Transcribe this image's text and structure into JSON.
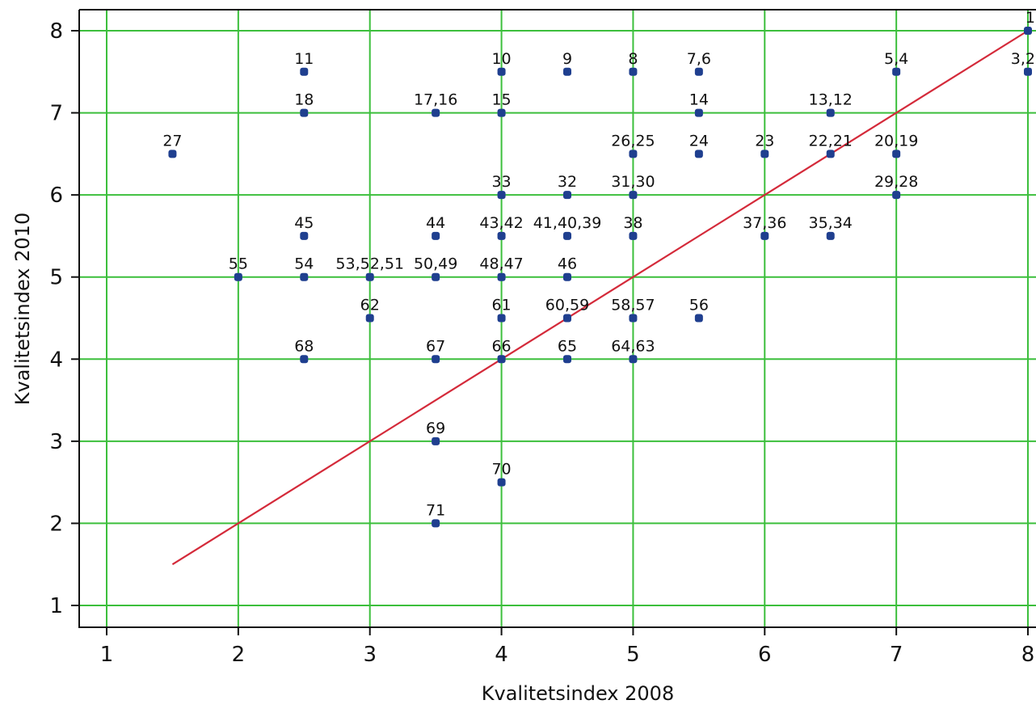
{
  "chart_data": {
    "type": "scatter",
    "xlabel": "Kvalitetsindex 2008",
    "ylabel": "Kvalitetsindex 2010",
    "xlim": [
      0.8,
      8.05
    ],
    "ylim": [
      0.7,
      8.25
    ],
    "xticks": [
      1,
      2,
      3,
      4,
      5,
      6,
      7,
      8
    ],
    "yticks": [
      1,
      2,
      3,
      4,
      5,
      6,
      7,
      8
    ],
    "xtick_labels": [
      "1",
      "2",
      "3",
      "4",
      "5",
      "6",
      "7",
      "8"
    ],
    "ytick_labels": [
      "1",
      "2",
      "3",
      "4",
      "5",
      "6",
      "7",
      "8"
    ],
    "grid": true,
    "reference_line": {
      "x": [
        1.5,
        8
      ],
      "y": [
        1.5,
        8
      ]
    },
    "colors": {
      "grid": "#3cbf3c",
      "points": "#1f3f8f",
      "reference_line": "#d42a3a"
    },
    "points": [
      {
        "x": 8,
        "y": 8,
        "label": "1"
      },
      {
        "x": 8,
        "y": 7.5,
        "label": "3,2"
      },
      {
        "x": 2.5,
        "y": 7.5,
        "label": "11"
      },
      {
        "x": 4,
        "y": 7.5,
        "label": "10"
      },
      {
        "x": 4.5,
        "y": 7.5,
        "label": "9"
      },
      {
        "x": 5,
        "y": 7.5,
        "label": "8"
      },
      {
        "x": 5.5,
        "y": 7.5,
        "label": "7,6"
      },
      {
        "x": 7,
        "y": 7.5,
        "label": "5,4"
      },
      {
        "x": 2.5,
        "y": 7,
        "label": "18"
      },
      {
        "x": 3.5,
        "y": 7,
        "label": "17,16"
      },
      {
        "x": 4,
        "y": 7,
        "label": "15"
      },
      {
        "x": 5.5,
        "y": 7,
        "label": "14"
      },
      {
        "x": 6.5,
        "y": 7,
        "label": "13,12"
      },
      {
        "x": 1.5,
        "y": 6.5,
        "label": "27"
      },
      {
        "x": 5,
        "y": 6.5,
        "label": "26,25"
      },
      {
        "x": 5.5,
        "y": 6.5,
        "label": "24"
      },
      {
        "x": 6,
        "y": 6.5,
        "label": "23"
      },
      {
        "x": 6.5,
        "y": 6.5,
        "label": "22,21"
      },
      {
        "x": 7,
        "y": 6.5,
        "label": "20,19"
      },
      {
        "x": 4,
        "y": 6,
        "label": "33"
      },
      {
        "x": 4.5,
        "y": 6,
        "label": "32"
      },
      {
        "x": 5,
        "y": 6,
        "label": "31,30"
      },
      {
        "x": 7,
        "y": 6,
        "label": "29,28"
      },
      {
        "x": 2.5,
        "y": 5.5,
        "label": "45"
      },
      {
        "x": 3.5,
        "y": 5.5,
        "label": "44"
      },
      {
        "x": 4,
        "y": 5.5,
        "label": "43,42"
      },
      {
        "x": 4.5,
        "y": 5.5,
        "label": "41,40,39"
      },
      {
        "x": 5,
        "y": 5.5,
        "label": "38"
      },
      {
        "x": 6,
        "y": 5.5,
        "label": "37,36"
      },
      {
        "x": 6.5,
        "y": 5.5,
        "label": "35,34"
      },
      {
        "x": 2,
        "y": 5,
        "label": "55"
      },
      {
        "x": 2.5,
        "y": 5,
        "label": "54"
      },
      {
        "x": 3,
        "y": 5,
        "label": "53,52,51"
      },
      {
        "x": 3.5,
        "y": 5,
        "label": "50,49"
      },
      {
        "x": 4,
        "y": 5,
        "label": "48,47"
      },
      {
        "x": 4.5,
        "y": 5,
        "label": "46"
      },
      {
        "x": 3,
        "y": 4.5,
        "label": "62"
      },
      {
        "x": 4,
        "y": 4.5,
        "label": "61"
      },
      {
        "x": 4.5,
        "y": 4.5,
        "label": "60,59"
      },
      {
        "x": 5,
        "y": 4.5,
        "label": "58,57"
      },
      {
        "x": 5.5,
        "y": 4.5,
        "label": "56"
      },
      {
        "x": 2.5,
        "y": 4,
        "label": "68"
      },
      {
        "x": 3.5,
        "y": 4,
        "label": "67"
      },
      {
        "x": 4,
        "y": 4,
        "label": "66"
      },
      {
        "x": 4.5,
        "y": 4,
        "label": "65"
      },
      {
        "x": 5,
        "y": 4,
        "label": "64,63"
      },
      {
        "x": 3.5,
        "y": 3,
        "label": "69"
      },
      {
        "x": 4,
        "y": 2.5,
        "label": "70"
      },
      {
        "x": 3.5,
        "y": 2,
        "label": "71"
      }
    ]
  }
}
